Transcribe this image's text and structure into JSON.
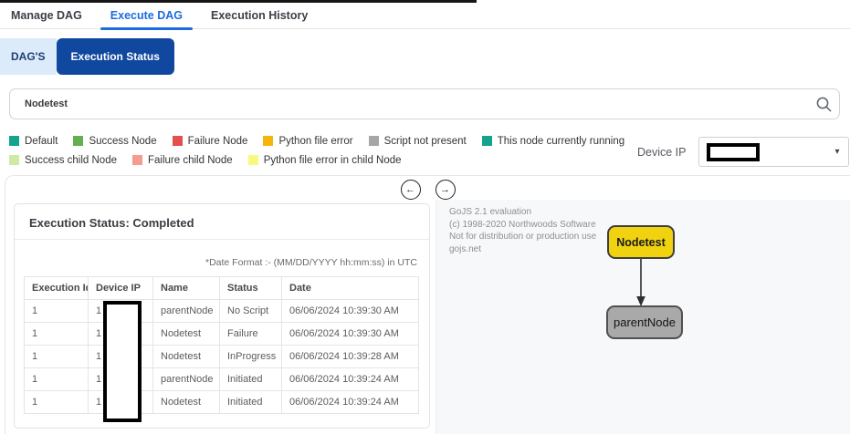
{
  "nav": {
    "items": [
      {
        "label": "Manage DAG",
        "active": false
      },
      {
        "label": "Execute DAG",
        "active": true
      },
      {
        "label": "Execution History",
        "active": false
      }
    ]
  },
  "tabs": {
    "items": [
      {
        "label": "DAG'S",
        "active": false
      },
      {
        "label": "Execution Status",
        "active": true
      }
    ]
  },
  "search": {
    "value": "Nodetest",
    "icon": "magnifier"
  },
  "legend": {
    "rows": [
      [
        {
          "label": "Default",
          "color": "#14a38f"
        },
        {
          "label": "Success Node",
          "color": "#66ae52"
        },
        {
          "label": "Failure Node",
          "color": "#e4504e"
        },
        {
          "label": "Python file error",
          "color": "#f5b50a"
        },
        {
          "label": "Script not present",
          "color": "#a6a6a6"
        },
        {
          "label": "This node currently running",
          "color": "#14a38f"
        }
      ],
      [
        {
          "label": "Success child Node",
          "color": "#cfe8a3"
        },
        {
          "label": "Failure child Node",
          "color": "#f49b92"
        },
        {
          "label": "Python file error in child Node",
          "color": "#f9f87f"
        }
      ]
    ]
  },
  "device_ip": {
    "label": "Device IP",
    "redacted": true,
    "chevron_icon": "▾"
  },
  "pager": {
    "prev_icon": "←",
    "next_icon": "→"
  },
  "execution_panel": {
    "title": "Execution Status: Completed",
    "date_note": "*Date Format :- (MM/DD/YYYY hh:mm:ss) in UTC",
    "table": {
      "columns": [
        "Execution Id",
        "Device IP",
        "Name",
        "Status",
        "Date"
      ],
      "rows": [
        [
          "1",
          "1",
          "parentNode",
          "No Script",
          "06/06/2024 10:39:30 AM"
        ],
        [
          "1",
          "1",
          "Nodetest",
          "Failure",
          "06/06/2024 10:39:30 AM"
        ],
        [
          "1",
          "1",
          "Nodetest",
          "InProgress",
          "06/06/2024 10:39:28 AM"
        ],
        [
          "1",
          "1",
          "parentNode",
          "Initiated",
          "06/06/2024 10:39:24 AM"
        ],
        [
          "1",
          "1",
          "Nodetest",
          "Initiated",
          "06/06/2024 10:39:24 AM"
        ]
      ],
      "device_ip_redacted": true
    }
  },
  "diagram": {
    "watermark": [
      "GoJS 2.1 evaluation",
      "(c) 1998-2020 Northwoods Software",
      "Not for distribution or production use",
      "gojs.net"
    ],
    "nodes": [
      {
        "label": "Nodetest",
        "color": "#f1d211"
      },
      {
        "label": "parentNode",
        "color": "#a9a9a9"
      }
    ],
    "edges": [
      {
        "from": "Nodetest",
        "to": "parentNode"
      }
    ]
  }
}
